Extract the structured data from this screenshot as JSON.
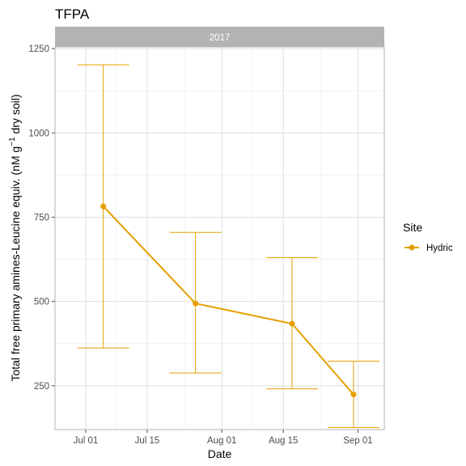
{
  "chart_data": {
    "type": "line",
    "title": "TFPA",
    "facet_label": "2017",
    "xlabel": "Date",
    "ylabel_main": "Total free primary amines-Leucine equiv. (nM g",
    "ylabel_sup": "−1",
    "ylabel_tail": " dry soil)",
    "x_ticks": [
      "Jul 01",
      "Jul 15",
      "Aug 01",
      "Aug 15",
      "Sep 01"
    ],
    "x_tick_dates": [
      "2017-07-01",
      "2017-07-15",
      "2017-08-01",
      "2017-08-15",
      "2017-09-01"
    ],
    "xlim": [
      "2017-06-24",
      "2017-09-07"
    ],
    "y_ticks": [
      250,
      500,
      750,
      1000,
      1250
    ],
    "ylim": [
      120,
      1255
    ],
    "grid": true,
    "legend": {
      "title": "Site",
      "position": "right"
    },
    "series": [
      {
        "name": "Hydric",
        "color": "#e69f00",
        "points": [
          {
            "x": "2017-07-05",
            "y": 782,
            "ymin": 362,
            "ymax": 1202
          },
          {
            "x": "2017-07-26",
            "y": 494,
            "ymin": 288,
            "ymax": 705
          },
          {
            "x": "2017-08-17",
            "y": 434,
            "ymin": 241,
            "ymax": 630
          },
          {
            "x": "2017-08-31",
            "y": 224,
            "ymin": 126,
            "ymax": 323
          }
        ]
      }
    ]
  }
}
